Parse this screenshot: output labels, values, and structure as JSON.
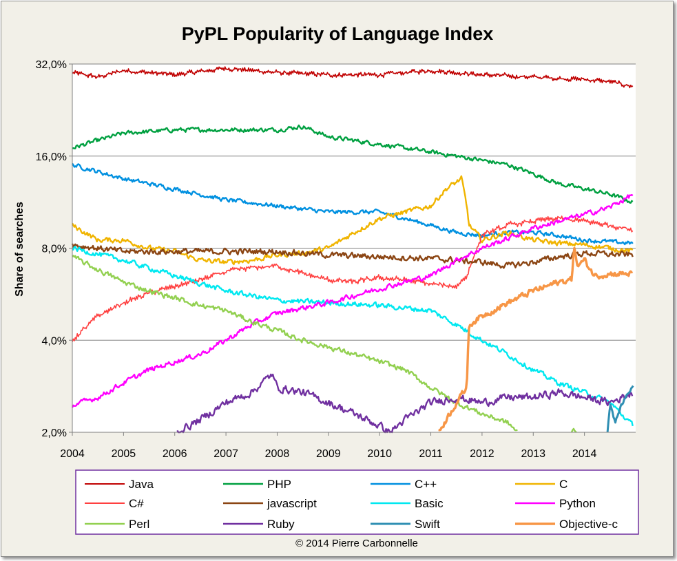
{
  "chart_data": {
    "type": "line",
    "title": "PyPL Popularity of Language Index",
    "ylabel": "Share of searches",
    "xlabel": "",
    "y_scale": "log2",
    "ylim": [
      2.0,
      32.0
    ],
    "xlim": [
      2004,
      2015
    ],
    "y_ticks": [
      "2,0%",
      "4,0%",
      "8,0%",
      "16,0%",
      "32,0%"
    ],
    "y_tick_values": [
      2,
      4,
      8,
      16,
      32
    ],
    "x_ticks": [
      "2004",
      "2005",
      "2006",
      "2007",
      "2008",
      "2009",
      "2010",
      "2011",
      "2012",
      "2013",
      "2014"
    ],
    "x_tick_values": [
      2004,
      2005,
      2006,
      2007,
      2008,
      2009,
      2010,
      2011,
      2012,
      2013,
      2014
    ],
    "grid": "horizontal",
    "legend_position": "bottom",
    "series": [
      {
        "name": "Java",
        "color": "#c00000",
        "width": 1.6,
        "noise": 0.035,
        "jag": true,
        "points": [
          [
            2004.0,
            30.0
          ],
          [
            2004.5,
            29.0
          ],
          [
            2005.0,
            30.5
          ],
          [
            2006.0,
            29.5
          ],
          [
            2007.0,
            31.0
          ],
          [
            2008.0,
            30.0
          ],
          [
            2009.0,
            29.5
          ],
          [
            2010.0,
            29.5
          ],
          [
            2011.0,
            30.5
          ],
          [
            2012.0,
            29.5
          ],
          [
            2013.0,
            29.0
          ],
          [
            2014.0,
            28.5
          ],
          [
            2014.5,
            28.0
          ],
          [
            2014.95,
            27.0
          ]
        ]
      },
      {
        "name": "PHP",
        "color": "#00a040",
        "width": 2.4,
        "noise": 0.025,
        "points": [
          [
            2004.0,
            17.0
          ],
          [
            2004.5,
            18.0
          ],
          [
            2005.0,
            19.0
          ],
          [
            2006.0,
            19.5
          ],
          [
            2007.0,
            19.5
          ],
          [
            2008.0,
            19.5
          ],
          [
            2008.5,
            20.0
          ],
          [
            2009.0,
            18.5
          ],
          [
            2010.0,
            17.5
          ],
          [
            2011.0,
            16.5
          ],
          [
            2012.0,
            15.5
          ],
          [
            2012.5,
            15.0
          ],
          [
            2013.0,
            14.0
          ],
          [
            2013.5,
            13.0
          ],
          [
            2014.0,
            12.5
          ],
          [
            2014.5,
            12.0
          ],
          [
            2014.95,
            11.3
          ]
        ]
      },
      {
        "name": "C++",
        "color": "#0090e0",
        "width": 2.4,
        "noise": 0.025,
        "points": [
          [
            2004.0,
            15.0
          ],
          [
            2005.0,
            13.5
          ],
          [
            2006.0,
            12.5
          ],
          [
            2007.0,
            11.5
          ],
          [
            2008.0,
            11.0
          ],
          [
            2009.0,
            10.5
          ],
          [
            2010.0,
            10.5
          ],
          [
            2010.5,
            10.0
          ],
          [
            2011.0,
            9.5
          ],
          [
            2011.5,
            9.0
          ],
          [
            2012.0,
            8.8
          ],
          [
            2012.5,
            9.0
          ],
          [
            2013.0,
            9.0
          ],
          [
            2013.5,
            8.8
          ],
          [
            2014.0,
            8.5
          ],
          [
            2014.95,
            8.3
          ]
        ]
      },
      {
        "name": "C",
        "color": "#f0b400",
        "width": 2.4,
        "noise": 0.03,
        "points": [
          [
            2004.0,
            9.5
          ],
          [
            2004.5,
            8.5
          ],
          [
            2005.0,
            8.5
          ],
          [
            2005.5,
            8.0
          ],
          [
            2006.0,
            7.8
          ],
          [
            2006.5,
            7.3
          ],
          [
            2007.0,
            7.2
          ],
          [
            2007.5,
            7.3
          ],
          [
            2008.0,
            7.6
          ],
          [
            2008.5,
            7.7
          ],
          [
            2009.0,
            8.0
          ],
          [
            2009.5,
            9.0
          ],
          [
            2010.0,
            10.0
          ],
          [
            2010.5,
            10.5
          ],
          [
            2011.0,
            11.0
          ],
          [
            2011.3,
            12.5
          ],
          [
            2011.6,
            13.5
          ],
          [
            2011.7,
            11.0
          ],
          [
            2011.75,
            9.5
          ],
          [
            2012.0,
            8.5
          ],
          [
            2012.5,
            9.0
          ],
          [
            2013.0,
            8.5
          ],
          [
            2013.5,
            8.3
          ],
          [
            2014.0,
            8.2
          ],
          [
            2014.5,
            8.0
          ],
          [
            2014.95,
            7.8
          ]
        ]
      },
      {
        "name": "C#",
        "color": "#ff4040",
        "width": 1.6,
        "noise": 0.04,
        "jag": true,
        "points": [
          [
            2004.0,
            4.0
          ],
          [
            2004.5,
            4.8
          ],
          [
            2005.0,
            5.3
          ],
          [
            2005.5,
            5.7
          ],
          [
            2006.0,
            6.0
          ],
          [
            2006.5,
            6.3
          ],
          [
            2007.0,
            6.7
          ],
          [
            2007.5,
            6.9
          ],
          [
            2008.0,
            7.0
          ],
          [
            2008.5,
            6.6
          ],
          [
            2009.0,
            6.3
          ],
          [
            2009.5,
            6.2
          ],
          [
            2010.0,
            6.4
          ],
          [
            2010.5,
            6.3
          ],
          [
            2011.0,
            6.1
          ],
          [
            2011.5,
            6.0
          ],
          [
            2011.7,
            6.5
          ],
          [
            2012.0,
            8.8
          ],
          [
            2012.5,
            9.5
          ],
          [
            2013.0,
            9.8
          ],
          [
            2013.5,
            10.0
          ],
          [
            2014.0,
            9.8
          ],
          [
            2014.5,
            9.5
          ],
          [
            2014.95,
            9.2
          ]
        ]
      },
      {
        "name": "javascript",
        "color": "#8b4513",
        "width": 2.4,
        "noise": 0.035,
        "points": [
          [
            2004.0,
            8.2
          ],
          [
            2005.0,
            7.8
          ],
          [
            2006.0,
            7.8
          ],
          [
            2007.0,
            7.8
          ],
          [
            2008.0,
            7.8
          ],
          [
            2009.0,
            7.6
          ],
          [
            2010.0,
            7.5
          ],
          [
            2011.0,
            7.4
          ],
          [
            2011.5,
            7.3
          ],
          [
            2012.0,
            7.2
          ],
          [
            2012.5,
            7.0
          ],
          [
            2013.0,
            7.2
          ],
          [
            2013.5,
            7.5
          ],
          [
            2014.0,
            7.7
          ],
          [
            2014.95,
            7.6
          ]
        ]
      },
      {
        "name": "Basic",
        "color": "#00e8f0",
        "width": 2.4,
        "noise": 0.03,
        "points": [
          [
            2004.0,
            8.0
          ],
          [
            2005.0,
            7.3
          ],
          [
            2006.0,
            6.5
          ],
          [
            2007.0,
            5.8
          ],
          [
            2008.0,
            5.4
          ],
          [
            2009.0,
            5.3
          ],
          [
            2010.0,
            5.2
          ],
          [
            2011.0,
            5.0
          ],
          [
            2011.5,
            4.5
          ],
          [
            2012.0,
            4.0
          ],
          [
            2012.5,
            3.6
          ],
          [
            2013.0,
            3.2
          ],
          [
            2013.5,
            2.9
          ],
          [
            2014.0,
            2.7
          ],
          [
            2014.5,
            2.5
          ],
          [
            2014.95,
            2.1
          ]
        ]
      },
      {
        "name": "Python",
        "color": "#ff00ff",
        "width": 2.4,
        "noise": 0.03,
        "points": [
          [
            2004.0,
            2.45
          ],
          [
            2004.5,
            2.6
          ],
          [
            2005.0,
            2.9
          ],
          [
            2005.5,
            3.2
          ],
          [
            2006.0,
            3.4
          ],
          [
            2006.5,
            3.6
          ],
          [
            2007.0,
            4.0
          ],
          [
            2007.5,
            4.5
          ],
          [
            2008.0,
            4.9
          ],
          [
            2008.5,
            5.1
          ],
          [
            2009.0,
            5.3
          ],
          [
            2009.5,
            5.6
          ],
          [
            2010.0,
            5.9
          ],
          [
            2010.5,
            6.2
          ],
          [
            2011.0,
            6.5
          ],
          [
            2011.5,
            7.3
          ],
          [
            2012.0,
            8.0
          ],
          [
            2012.5,
            8.6
          ],
          [
            2013.0,
            9.3
          ],
          [
            2013.5,
            9.8
          ],
          [
            2014.0,
            10.3
          ],
          [
            2014.5,
            10.9
          ],
          [
            2014.95,
            12.0
          ]
        ]
      },
      {
        "name": "Perl",
        "color": "#92d050",
        "width": 2.4,
        "noise": 0.03,
        "points": [
          [
            2004.0,
            7.5
          ],
          [
            2004.5,
            6.8
          ],
          [
            2005.0,
            6.2
          ],
          [
            2005.5,
            5.8
          ],
          [
            2006.0,
            5.5
          ],
          [
            2006.5,
            5.2
          ],
          [
            2007.0,
            5.0
          ],
          [
            2007.5,
            4.6
          ],
          [
            2008.0,
            4.3
          ],
          [
            2008.5,
            4.0
          ],
          [
            2009.0,
            3.8
          ],
          [
            2009.5,
            3.6
          ],
          [
            2010.0,
            3.4
          ],
          [
            2010.5,
            3.2
          ],
          [
            2011.0,
            2.8
          ],
          [
            2011.5,
            2.5
          ],
          [
            2012.0,
            2.3
          ],
          [
            2012.5,
            2.15
          ],
          [
            2012.7,
            2.0
          ],
          [
            null,
            null
          ],
          [
            2013.75,
            2.0
          ],
          [
            2013.8,
            2.05
          ],
          [
            2013.85,
            2.0
          ]
        ]
      },
      {
        "name": "Ruby",
        "color": "#7030a0",
        "width": 2.4,
        "noise": 0.045,
        "points": [
          [
            2006.05,
            2.0
          ],
          [
            2006.5,
            2.2
          ],
          [
            2007.0,
            2.5
          ],
          [
            2007.5,
            2.7
          ],
          [
            2007.9,
            3.1
          ],
          [
            2008.0,
            2.8
          ],
          [
            2008.5,
            2.7
          ],
          [
            2009.0,
            2.5
          ],
          [
            2009.5,
            2.3
          ],
          [
            2010.0,
            2.1
          ],
          [
            2010.2,
            2.0
          ],
          [
            2010.5,
            2.2
          ],
          [
            2011.0,
            2.5
          ],
          [
            2011.5,
            2.6
          ],
          [
            2012.0,
            2.5
          ],
          [
            2012.5,
            2.6
          ],
          [
            2013.0,
            2.6
          ],
          [
            2013.5,
            2.7
          ],
          [
            2014.0,
            2.6
          ],
          [
            2014.5,
            2.5
          ],
          [
            2014.95,
            2.7
          ]
        ]
      },
      {
        "name": "Swift",
        "color": "#2f8fb3",
        "width": 3.0,
        "noise": 0.02,
        "points": [
          [
            2014.45,
            2.0
          ],
          [
            2014.5,
            2.5
          ],
          [
            2014.6,
            2.15
          ],
          [
            2014.7,
            2.4
          ],
          [
            2014.8,
            2.6
          ],
          [
            2014.95,
            2.85
          ]
        ]
      },
      {
        "name": "Objective-c",
        "color": "#f79646",
        "width": 3.4,
        "noise": 0.035,
        "points": [
          [
            2011.15,
            2.0
          ],
          [
            2011.3,
            2.2
          ],
          [
            2011.5,
            2.5
          ],
          [
            2011.7,
            2.8
          ],
          [
            2011.72,
            3.5
          ],
          [
            2011.75,
            4.5
          ],
          [
            2012.0,
            4.8
          ],
          [
            2012.5,
            5.3
          ],
          [
            2013.0,
            5.8
          ],
          [
            2013.5,
            6.2
          ],
          [
            2013.75,
            6.3
          ],
          [
            2013.8,
            8.3
          ],
          [
            2013.85,
            7.0
          ],
          [
            2014.0,
            7.3
          ],
          [
            2014.2,
            6.5
          ],
          [
            2014.5,
            6.6
          ],
          [
            2014.95,
            6.6
          ]
        ]
      }
    ],
    "legend": [
      [
        "Java",
        "PHP",
        "C++",
        "C"
      ],
      [
        "C#",
        "javascript",
        "Basic",
        "Python"
      ],
      [
        "Perl",
        "Ruby",
        "Swift",
        "Objective-c"
      ]
    ],
    "credit": "© 2014 Pierre Carbonnelle"
  }
}
